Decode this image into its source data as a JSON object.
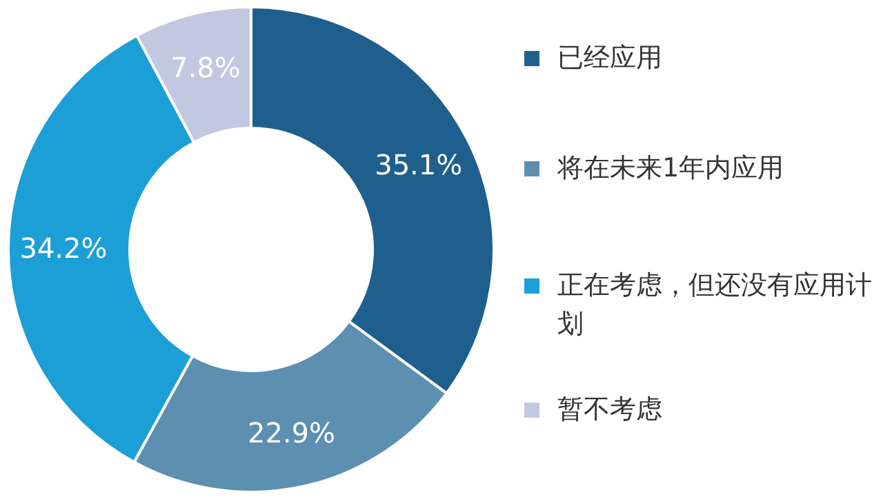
{
  "chart_data": {
    "type": "donut",
    "categories": [
      "已经应用",
      "将在未来1年内应用",
      "正在考虑，但还没有应用计划",
      "暂不考虑"
    ],
    "values": [
      35.1,
      22.9,
      34.2,
      7.8
    ],
    "value_labels": [
      "35.1%",
      "22.9%",
      "34.2%",
      "7.8%"
    ],
    "colors": [
      "#1f5f8e",
      "#5d8fb1",
      "#1c9fd6",
      "#c3c8e2"
    ],
    "legend": "right"
  }
}
